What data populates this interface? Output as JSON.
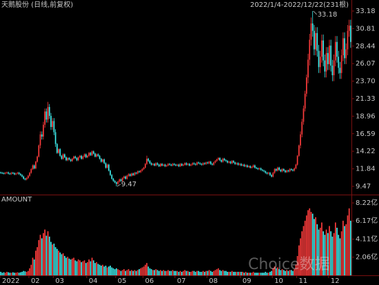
{
  "chart_data": [
    {
      "type": "candlestick",
      "title": "天鹅股份 (日线,前复权)",
      "subtitle": "2022/1/4-2022/12/22(231根)",
      "up_color": "#ff3c3c",
      "down_color": "#40f0f0",
      "max_label": "33.18",
      "min_label": "9.47",
      "ylim": [
        8.54,
        33.74
      ],
      "yticks": [
        33.18,
        30.81,
        28.44,
        26.07,
        {
          "value": 23.7,
          "label": "23.70"
        },
        21.33,
        18.96,
        16.59,
        14.22,
        11.84,
        9.47
      ],
      "open": [
        11.35,
        11.3,
        11.25,
        11.2,
        11.3,
        11.35,
        11.2,
        11.15,
        11.3,
        11.25,
        11.1,
        11.2,
        11.3,
        11.15,
        11.0,
        10.8,
        10.5,
        10.4,
        10.6,
        10.9,
        11.3,
        11.8,
        12.3,
        11.9,
        12.8,
        13.5,
        15.0,
        16.5,
        16.2,
        17.8,
        19.6,
        18.5,
        20.2,
        19.0,
        17.5,
        18.3,
        16.8,
        15.2,
        14.0,
        14.5,
        13.6,
        13.2,
        13.8,
        13.4,
        13.0,
        13.3,
        13.1,
        12.9,
        13.2,
        13.5,
        13.3,
        13.0,
        13.4,
        13.6,
        13.2,
        13.5,
        13.8,
        13.4,
        13.6,
        14.0,
        13.7,
        14.2,
        13.9,
        13.5,
        13.8,
        13.6,
        13.2,
        12.8,
        13.1,
        12.6,
        12.0,
        12.4,
        11.6,
        11.0,
        10.5,
        10.2,
        10.0,
        9.8,
        10.1,
        10.4,
        10.2,
        10.6,
        10.8,
        10.5,
        10.9,
        11.1,
        10.9,
        11.2,
        11.0,
        11.3,
        11.2,
        11.5,
        11.4,
        11.6,
        11.8,
        12.0,
        12.5,
        13.2,
        12.9,
        12.6,
        12.4,
        12.5,
        12.3,
        12.6,
        12.4,
        12.2,
        12.5,
        12.3,
        12.4,
        12.2,
        12.3,
        12.5,
        12.4,
        12.3,
        12.5,
        12.4,
        12.3,
        12.4,
        12.2,
        12.5,
        12.3,
        12.4,
        12.6,
        12.4,
        12.5,
        12.3,
        12.4,
        12.6,
        12.5,
        12.4,
        12.7,
        12.6,
        12.5,
        12.4,
        12.6,
        12.5,
        12.7,
        12.6,
        12.8,
        12.5,
        12.4,
        12.7,
        12.9,
        13.1,
        13.3,
        13.0,
        12.8,
        13.2,
        13.0,
        12.9,
        12.7,
        12.8,
        12.6,
        12.9,
        12.7,
        12.5,
        12.6,
        12.4,
        12.5,
        12.3,
        12.4,
        12.2,
        12.3,
        12.1,
        12.2,
        12.0,
        12.1,
        12.3,
        12.0,
        11.9,
        11.8,
        11.9,
        11.7,
        11.6,
        11.5,
        11.3,
        11.2,
        11.3,
        11.0,
        10.8,
        11.3,
        11.8,
        11.6,
        12.0,
        11.7,
        11.5,
        11.8,
        11.6,
        11.4,
        11.6,
        11.5,
        11.8,
        11.7,
        11.6,
        11.9,
        12.4,
        13.6,
        15.0,
        16.5,
        18.2,
        20.0,
        22.0,
        24.2,
        26.6,
        29.3,
        31.5,
        30.5,
        28.0,
        30.2,
        27.8,
        25.6,
        27.0,
        29.2,
        26.5,
        25.0,
        27.5,
        26.0,
        28.5,
        25.8,
        24.5,
        26.5,
        29.0,
        27.0,
        25.5,
        24.8,
        27.2,
        29.5,
        26.8,
        28.0,
        30.5,
        31.2
      ],
      "high": [
        11.47,
        11.42,
        11.37,
        11.42,
        11.47,
        11.47,
        11.32,
        11.42,
        11.42,
        11.37,
        11.32,
        11.42,
        11.42,
        11.27,
        11.12,
        10.92,
        10.62,
        10.72,
        11.02,
        11.42,
        11.92,
        12.42,
        12.42,
        12.92,
        13.62,
        15.12,
        16.9,
        16.9,
        18.2,
        20.0,
        20.0,
        20.9,
        20.6,
        19.4,
        18.7,
        18.7,
        17.2,
        15.32,
        14.62,
        14.62,
        13.72,
        13.92,
        13.92,
        13.52,
        13.42,
        13.42,
        13.22,
        13.32,
        13.62,
        13.62,
        13.42,
        13.52,
        13.72,
        13.72,
        13.62,
        13.92,
        13.92,
        13.72,
        14.12,
        14.12,
        14.32,
        14.32,
        14.02,
        13.92,
        13.92,
        13.72,
        13.32,
        13.22,
        13.22,
        12.72,
        12.52,
        12.52,
        11.72,
        11.12,
        10.62,
        10.32,
        10.12,
        10.22,
        10.52,
        10.52,
        10.72,
        10.92,
        10.92,
        11.02,
        11.22,
        11.22,
        11.32,
        11.32,
        11.42,
        11.42,
        11.62,
        11.62,
        11.72,
        11.92,
        12.12,
        12.62,
        13.62,
        13.32,
        13.02,
        12.72,
        12.62,
        12.62,
        12.72,
        12.72,
        12.52,
        12.62,
        12.62,
        12.52,
        12.52,
        12.42,
        12.62,
        12.62,
        12.52,
        12.62,
        12.62,
        12.52,
        12.52,
        12.52,
        12.62,
        12.62,
        12.52,
        12.72,
        12.72,
        12.62,
        12.62,
        12.52,
        12.72,
        12.72,
        12.62,
        12.82,
        12.82,
        12.72,
        12.62,
        12.72,
        12.72,
        12.82,
        12.82,
        12.92,
        12.92,
        12.62,
        12.82,
        13.02,
        13.22,
        13.42,
        13.42,
        13.12,
        13.32,
        13.32,
        13.12,
        13.02,
        12.92,
        12.92,
        13.02,
        13.02,
        12.82,
        12.72,
        12.72,
        12.62,
        12.62,
        12.52,
        12.52,
        12.42,
        12.42,
        12.32,
        12.32,
        12.22,
        12.42,
        12.42,
        12.12,
        12.02,
        12.02,
        12.02,
        11.82,
        11.72,
        11.62,
        11.42,
        11.42,
        11.42,
        11.12,
        11.42,
        11.92,
        11.92,
        12.12,
        12.12,
        11.82,
        11.92,
        11.92,
        11.72,
        11.72,
        11.72,
        11.92,
        11.92,
        11.82,
        12.02,
        12.52,
        13.72,
        15.12,
        16.9,
        18.6,
        20.4,
        22.4,
        24.6,
        27.4,
        30.1,
        32.3,
        33.18,
        31.3,
        31.0,
        31.0,
        28.6,
        27.8,
        30.0,
        30.0,
        27.3,
        28.3,
        28.3,
        29.3,
        29.3,
        26.6,
        27.3,
        29.8,
        29.8,
        27.8,
        26.3,
        28.0,
        30.3,
        30.3,
        28.8,
        31.3,
        32.0,
        32.0
      ],
      "low": [
        11.18,
        11.13,
        11.08,
        11.08,
        11.18,
        11.08,
        11.03,
        11.03,
        11.13,
        10.98,
        10.98,
        11.08,
        11.03,
        10.88,
        10.68,
        10.38,
        10.28,
        10.28,
        10.48,
        10.78,
        11.18,
        11.68,
        11.78,
        11.78,
        12.68,
        13.38,
        14.6,
        15.8,
        15.8,
        17.4,
        18.1,
        18.1,
        18.6,
        17.1,
        17.1,
        16.4,
        14.8,
        13.88,
        13.88,
        13.48,
        13.08,
        13.08,
        13.28,
        12.88,
        12.88,
        12.98,
        12.78,
        12.78,
        13.08,
        13.18,
        12.88,
        12.88,
        13.28,
        13.08,
        13.08,
        13.38,
        13.28,
        13.28,
        13.48,
        13.58,
        13.58,
        13.78,
        13.38,
        13.38,
        13.48,
        13.08,
        12.68,
        12.68,
        12.48,
        11.88,
        11.88,
        11.48,
        10.88,
        10.38,
        10.08,
        9.88,
        9.47,
        9.68,
        9.98,
        10.08,
        10.08,
        10.48,
        10.38,
        10.38,
        10.78,
        10.78,
        10.78,
        10.88,
        10.88,
        11.08,
        11.08,
        11.28,
        11.28,
        11.48,
        11.68,
        11.88,
        12.38,
        12.78,
        12.48,
        12.28,
        12.28,
        12.18,
        12.18,
        12.28,
        12.08,
        12.08,
        12.18,
        12.18,
        12.08,
        12.08,
        12.18,
        12.28,
        12.18,
        12.18,
        12.28,
        12.18,
        12.18,
        12.08,
        12.08,
        12.18,
        12.18,
        12.28,
        12.28,
        12.28,
        12.18,
        12.18,
        12.28,
        12.38,
        12.28,
        12.28,
        12.48,
        12.38,
        12.28,
        12.28,
        12.38,
        12.38,
        12.48,
        12.48,
        12.38,
        12.28,
        12.28,
        12.58,
        12.78,
        12.98,
        12.88,
        12.68,
        12.68,
        12.88,
        12.78,
        12.58,
        12.58,
        12.48,
        12.48,
        12.58,
        12.38,
        12.38,
        12.28,
        12.28,
        12.18,
        12.18,
        12.08,
        12.08,
        11.98,
        11.98,
        11.88,
        11.88,
        11.98,
        11.88,
        11.78,
        11.68,
        11.68,
        11.58,
        11.48,
        11.38,
        11.18,
        11.08,
        11.08,
        10.88,
        10.68,
        10.68,
        11.18,
        11.48,
        11.48,
        11.58,
        11.38,
        11.38,
        11.48,
        11.28,
        11.28,
        11.38,
        11.38,
        11.58,
        11.48,
        11.48,
        11.78,
        12.28,
        13.48,
        14.6,
        16.1,
        17.8,
        19.6,
        21.6,
        23.4,
        25.8,
        28.5,
        29.7,
        27.2,
        27.2,
        27.0,
        24.8,
        24.8,
        26.2,
        25.7,
        24.2,
        24.2,
        25.2,
        25.2,
        25.0,
        23.7,
        23.7,
        25.7,
        26.2,
        24.7,
        24.0,
        24.0,
        26.4,
        26.0,
        26.0,
        27.2,
        29.7,
        28.2
      ],
      "close": [
        11.3,
        11.25,
        11.2,
        11.3,
        11.35,
        11.2,
        11.15,
        11.3,
        11.25,
        11.1,
        11.2,
        11.3,
        11.15,
        11.0,
        10.8,
        10.5,
        10.4,
        10.6,
        10.9,
        11.3,
        11.8,
        12.3,
        11.9,
        12.8,
        13.5,
        15.0,
        16.5,
        16.2,
        17.8,
        19.6,
        18.5,
        20.2,
        19.0,
        17.5,
        18.3,
        16.8,
        15.2,
        14.0,
        14.5,
        13.6,
        13.2,
        13.8,
        13.4,
        13.0,
        13.3,
        13.1,
        12.9,
        13.2,
        13.5,
        13.3,
        13.0,
        13.4,
        13.6,
        13.2,
        13.5,
        13.8,
        13.4,
        13.6,
        14.0,
        13.7,
        14.2,
        13.9,
        13.5,
        13.8,
        13.6,
        13.2,
        12.8,
        13.1,
        12.6,
        12.0,
        12.4,
        11.6,
        11.0,
        10.5,
        10.2,
        10.0,
        9.8,
        10.1,
        10.4,
        10.2,
        10.6,
        10.8,
        10.5,
        10.9,
        11.1,
        10.9,
        11.2,
        11.0,
        11.3,
        11.2,
        11.5,
        11.4,
        11.6,
        11.8,
        12.0,
        12.5,
        13.2,
        12.9,
        12.6,
        12.4,
        12.5,
        12.3,
        12.6,
        12.4,
        12.2,
        12.5,
        12.3,
        12.4,
        12.2,
        12.3,
        12.5,
        12.4,
        12.3,
        12.5,
        12.4,
        12.3,
        12.4,
        12.2,
        12.5,
        12.3,
        12.4,
        12.6,
        12.4,
        12.5,
        12.3,
        12.4,
        12.6,
        12.5,
        12.4,
        12.7,
        12.6,
        12.5,
        12.4,
        12.6,
        12.5,
        12.7,
        12.6,
        12.8,
        12.5,
        12.4,
        12.7,
        12.9,
        13.1,
        13.3,
        13.0,
        12.8,
        13.2,
        13.0,
        12.9,
        12.7,
        12.8,
        12.6,
        12.9,
        12.7,
        12.5,
        12.6,
        12.4,
        12.5,
        12.3,
        12.4,
        12.2,
        12.3,
        12.1,
        12.2,
        12.0,
        12.1,
        12.3,
        12.0,
        11.9,
        11.8,
        11.9,
        11.7,
        11.6,
        11.5,
        11.3,
        11.2,
        11.3,
        11.0,
        10.8,
        11.3,
        11.8,
        11.6,
        12.0,
        11.7,
        11.5,
        11.8,
        11.6,
        11.4,
        11.6,
        11.5,
        11.8,
        11.7,
        11.6,
        11.9,
        12.4,
        13.6,
        15.0,
        16.5,
        18.2,
        20.0,
        22.0,
        24.2,
        26.6,
        29.3,
        31.5,
        30.5,
        28.0,
        30.2,
        27.8,
        25.6,
        27.0,
        29.2,
        26.5,
        25.0,
        27.5,
        26.0,
        28.5,
        25.8,
        24.5,
        26.5,
        29.0,
        27.0,
        25.5,
        24.8,
        27.2,
        29.5,
        26.8,
        28.0,
        30.5,
        31.2,
        29.0
      ]
    },
    {
      "type": "bar",
      "title": "AMOUNT",
      "ylim": [
        0,
        8.93
      ],
      "yticks": [
        {
          "value": 8.22,
          "label": "8.22亿"
        },
        {
          "value": 6.17,
          "label": "6.17亿"
        },
        {
          "value": 4.11,
          "label": "4.11亿"
        },
        {
          "value": 2.06,
          "label": "2.06亿"
        }
      ],
      "xticks": [
        {
          "value": 0,
          "label": "2022"
        },
        {
          "value": 19,
          "label": "02"
        },
        {
          "value": 35,
          "label": "03"
        },
        {
          "value": 57,
          "label": "04"
        },
        {
          "value": 76,
          "label": "05"
        },
        {
          "value": 94,
          "label": "06"
        },
        {
          "value": 115,
          "label": "07"
        },
        {
          "value": 136,
          "label": "08"
        },
        {
          "value": 158,
          "label": "09"
        },
        {
          "value": 179,
          "label": "10"
        },
        {
          "value": 195,
          "label": "11"
        },
        {
          "value": 216,
          "label": "12"
        }
      ],
      "values": [
        0.4,
        0.3,
        0.35,
        0.3,
        0.4,
        0.35,
        0.3,
        0.3,
        0.35,
        0.3,
        0.3,
        0.35,
        0.3,
        0.35,
        0.4,
        0.5,
        0.45,
        0.4,
        0.5,
        0.8,
        1.2,
        2.0,
        1.8,
        2.8,
        3.2,
        4.0,
        4.6,
        4.2,
        4.8,
        5.2,
        4.5,
        5.0,
        4.4,
        3.8,
        3.5,
        3.6,
        3.2,
        3.0,
        2.8,
        2.6,
        2.4,
        2.5,
        2.2,
        2.0,
        2.1,
        1.9,
        1.8,
        1.9,
        2.0,
        1.7,
        1.6,
        1.8,
        1.7,
        1.5,
        1.6,
        1.7,
        1.4,
        1.5,
        1.8,
        1.6,
        2.0,
        1.7,
        1.4,
        1.5,
        1.3,
        1.2,
        1.1,
        1.2,
        1.0,
        1.1,
        0.9,
        1.0,
        1.1,
        0.9,
        0.8,
        0.7,
        0.8,
        0.7,
        0.6,
        0.5,
        0.6,
        0.7,
        0.5,
        0.6,
        0.7,
        0.5,
        0.6,
        0.5,
        0.6,
        0.5,
        0.6,
        0.7,
        0.8,
        0.9,
        1.0,
        1.2,
        1.4,
        1.0,
        0.8,
        0.7,
        0.6,
        0.6,
        0.7,
        0.6,
        0.5,
        0.6,
        0.5,
        0.6,
        0.5,
        0.5,
        0.6,
        0.5,
        0.5,
        0.6,
        0.5,
        0.5,
        0.5,
        0.4,
        0.5,
        0.4,
        0.5,
        0.6,
        0.5,
        0.5,
        0.4,
        0.4,
        0.5,
        0.5,
        0.4,
        0.5,
        0.5,
        0.4,
        0.4,
        0.5,
        0.4,
        0.5,
        0.5,
        0.6,
        0.5,
        0.4,
        0.5,
        0.6,
        0.7,
        0.8,
        0.6,
        0.5,
        0.6,
        0.5,
        0.5,
        0.4,
        0.4,
        0.4,
        0.5,
        0.4,
        0.4,
        0.4,
        0.4,
        0.4,
        0.4,
        0.4,
        0.3,
        0.4,
        0.3,
        0.3,
        0.3,
        0.3,
        0.4,
        0.3,
        0.3,
        0.3,
        0.3,
        0.3,
        0.3,
        0.3,
        0.4,
        0.3,
        0.3,
        0.4,
        0.5,
        0.8,
        1.0,
        0.8,
        0.9,
        0.7,
        0.6,
        0.7,
        0.6,
        0.5,
        0.6,
        0.5,
        0.6,
        0.6,
        0.5,
        0.7,
        1.2,
        2.2,
        3.4,
        4.2,
        5.0,
        5.6,
        6.2,
        6.8,
        7.4,
        7.6,
        7.2,
        7.0,
        6.4,
        6.6,
        5.8,
        5.2,
        5.4,
        6.0,
        5.0,
        4.6,
        5.2,
        4.8,
        5.6,
        5.0,
        4.4,
        4.8,
        6.0,
        5.4,
        4.6,
        4.2,
        5.0,
        6.2,
        5.6,
        5.8,
        6.8,
        7.6,
        6.2
      ]
    }
  ],
  "watermark": "Choice数据"
}
